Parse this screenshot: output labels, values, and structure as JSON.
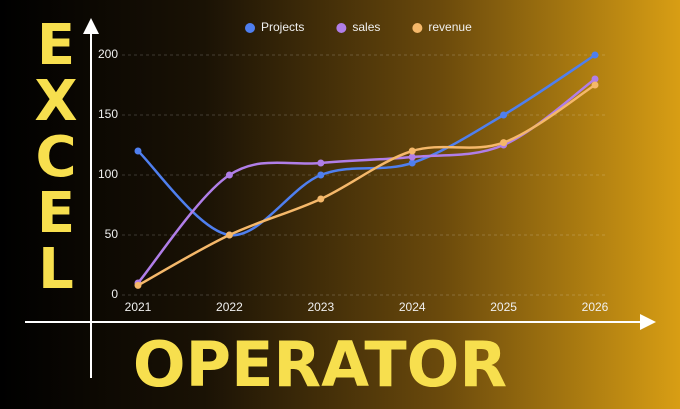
{
  "chart_data": {
    "type": "line",
    "side_text": "EXCEL",
    "bottom_text": "OPERATOR",
    "x": [
      2021,
      2022,
      2023,
      2024,
      2025,
      2026
    ],
    "xlim": [
      2021,
      2026
    ],
    "series": [
      {
        "name": "Projects",
        "color": "#4f7fef",
        "values": [
          120,
          50,
          100,
          110,
          150,
          200
        ]
      },
      {
        "name": "sales",
        "color": "#b07ee8",
        "values": [
          10,
          100,
          110,
          115,
          125,
          180
        ]
      },
      {
        "name": "revenue",
        "color": "#f5b86a",
        "values": [
          8,
          50,
          80,
          120,
          127,
          175
        ]
      }
    ],
    "ylim": [
      0,
      200
    ],
    "yticks": [
      0,
      50,
      100,
      150,
      200
    ],
    "grid": true,
    "legend": "top"
  }
}
